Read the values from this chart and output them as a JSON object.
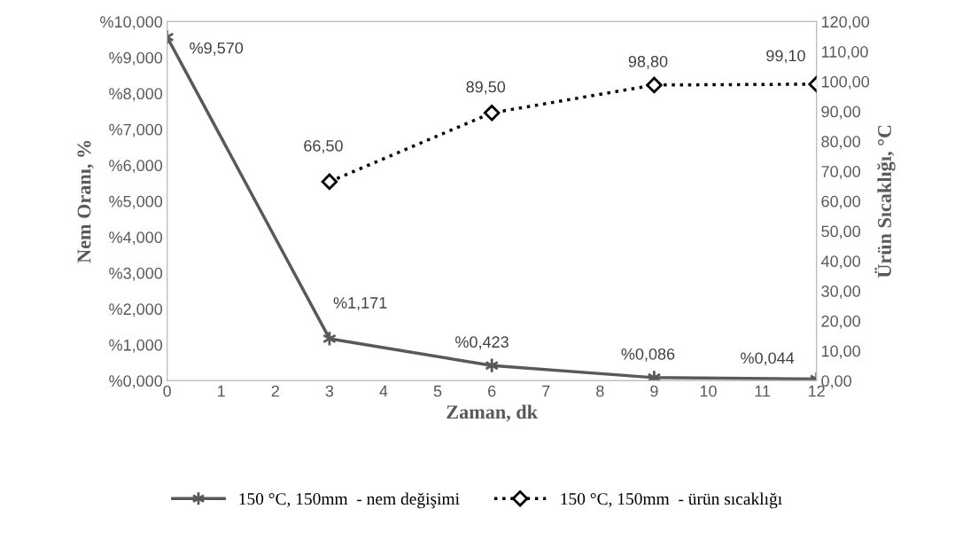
{
  "chart_data": {
    "type": "line",
    "xlabel": "Zaman, dk",
    "ylabel": "Nem Oranı, %",
    "y2label": "Ürün Sıcaklığı, °C",
    "xlim": [
      0,
      12
    ],
    "xticks": [
      0,
      1,
      2,
      3,
      4,
      5,
      6,
      7,
      8,
      9,
      10,
      11,
      12
    ],
    "ylim": [
      0,
      10
    ],
    "yticks": [
      {
        "value": 0,
        "label": "%0,000"
      },
      {
        "value": 1,
        "label": "%1,000"
      },
      {
        "value": 2,
        "label": "%2,000"
      },
      {
        "value": 3,
        "label": "%3,000"
      },
      {
        "value": 4,
        "label": "%4,000"
      },
      {
        "value": 5,
        "label": "%5,000"
      },
      {
        "value": 6,
        "label": "%6,000"
      },
      {
        "value": 7,
        "label": "%7,000"
      },
      {
        "value": 8,
        "label": "%8,000"
      },
      {
        "value": 9,
        "label": "%9,000"
      },
      {
        "value": 10,
        "label": "%10,000"
      }
    ],
    "y2lim": [
      0,
      120
    ],
    "y2ticks": [
      {
        "value": 0,
        "label": "0,00"
      },
      {
        "value": 10,
        "label": "10,00"
      },
      {
        "value": 20,
        "label": "20,00"
      },
      {
        "value": 30,
        "label": "30,00"
      },
      {
        "value": 40,
        "label": "40,00"
      },
      {
        "value": 50,
        "label": "50,00"
      },
      {
        "value": 60,
        "label": "60,00"
      },
      {
        "value": 70,
        "label": "70,00"
      },
      {
        "value": 80,
        "label": "80,00"
      },
      {
        "value": 90,
        "label": "90,00"
      },
      {
        "value": 100,
        "label": "100,00"
      },
      {
        "value": 110,
        "label": "110,00"
      },
      {
        "value": 120,
        "label": "120,00"
      }
    ],
    "grid": false,
    "legend": "bottom",
    "series": [
      {
        "name": "150 °C, 150mm  - nem değişimi",
        "color": "#595959",
        "x": [
          0,
          3,
          6,
          9,
          12
        ],
        "values": [
          9.57,
          1.171,
          0.423,
          0.086,
          0.044
        ],
        "value_labels": [
          "%9,570",
          "%1,171",
          "%0,423",
          "%0,086",
          "%0,044"
        ],
        "marker": "cross",
        "line_style": "solid"
      },
      {
        "name": "150 °C, 150mm  - ürün sıcaklığı",
        "color": "#000000",
        "axis": "y2",
        "x": [
          3,
          6,
          9,
          12
        ],
        "values": [
          66.5,
          89.5,
          98.8,
          99.1
        ],
        "value_labels": [
          "66,50",
          "89,50",
          "98,80",
          "99,10"
        ],
        "marker": "diamond",
        "line_style": "dotted"
      }
    ]
  }
}
